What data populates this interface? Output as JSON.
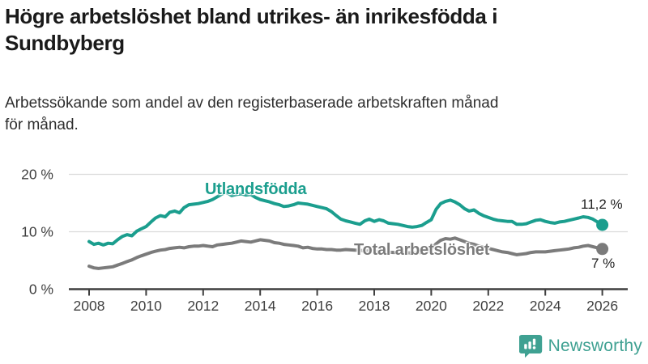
{
  "header": {
    "title_lines": [
      "Högre arbetslöshet bland utrikes- än inrikesfödda i",
      "Sundbyberg"
    ],
    "subtitle_lines": [
      "Arbetssökande som andel av den registerbaserade arbetskraften månad",
      "för månad."
    ]
  },
  "chart_data": {
    "type": "line",
    "title": "Högre arbetslöshet bland utrikes- än inrikesfödda i Sundbyberg",
    "subtitle": "Arbetssökande som andel av den registerbaserade arbetskraften månad för månad.",
    "unit": "%",
    "xlim": [
      2008,
      2026.3
    ],
    "ylim": [
      0,
      20
    ],
    "grid": "horizontal",
    "x_ticks": [
      2008,
      2010,
      2012,
      2014,
      2016,
      2018,
      2020,
      2022,
      2024,
      2026
    ],
    "y_ticks": [
      {
        "value": 20,
        "label": "20 %"
      },
      {
        "value": 10,
        "label": "10 %"
      },
      {
        "value": 0,
        "label": "0 %"
      }
    ],
    "colors": {
      "utlandsfodda": "#1b9e8e",
      "total": "#7b7b7b",
      "grid": "#dadada",
      "axis": "#3f3f3f",
      "tick_text": "#3f3f3f"
    },
    "series": [
      {
        "name": "Utlandsfödda",
        "color": "#1b9e8e",
        "end_label": "11,2 %",
        "end_value": 11.2,
        "points": [
          [
            2008.0,
            8.3
          ],
          [
            2008.17,
            7.8
          ],
          [
            2008.33,
            8.0
          ],
          [
            2008.5,
            7.7
          ],
          [
            2008.67,
            8.0
          ],
          [
            2008.83,
            7.9
          ],
          [
            2009.0,
            8.6
          ],
          [
            2009.17,
            9.2
          ],
          [
            2009.33,
            9.5
          ],
          [
            2009.5,
            9.3
          ],
          [
            2009.67,
            10.1
          ],
          [
            2009.83,
            10.5
          ],
          [
            2010.0,
            10.9
          ],
          [
            2010.17,
            11.7
          ],
          [
            2010.33,
            12.4
          ],
          [
            2010.5,
            12.8
          ],
          [
            2010.67,
            12.6
          ],
          [
            2010.83,
            13.4
          ],
          [
            2011.0,
            13.6
          ],
          [
            2011.17,
            13.3
          ],
          [
            2011.33,
            14.2
          ],
          [
            2011.5,
            14.7
          ],
          [
            2011.67,
            14.8
          ],
          [
            2011.83,
            14.9
          ],
          [
            2012.0,
            15.1
          ],
          [
            2012.17,
            15.3
          ],
          [
            2012.33,
            15.6
          ],
          [
            2012.5,
            16.1
          ],
          [
            2012.67,
            16.6
          ],
          [
            2012.83,
            16.8
          ],
          [
            2013.0,
            16.3
          ],
          [
            2013.17,
            16.5
          ],
          [
            2013.33,
            16.6
          ],
          [
            2013.5,
            16.4
          ],
          [
            2013.67,
            16.5
          ],
          [
            2013.83,
            16.0
          ],
          [
            2014.0,
            15.6
          ],
          [
            2014.17,
            15.4
          ],
          [
            2014.33,
            15.2
          ],
          [
            2014.5,
            14.9
          ],
          [
            2014.67,
            14.7
          ],
          [
            2014.83,
            14.4
          ],
          [
            2015.0,
            14.5
          ],
          [
            2015.17,
            14.7
          ],
          [
            2015.33,
            15.0
          ],
          [
            2015.5,
            14.9
          ],
          [
            2015.67,
            14.8
          ],
          [
            2015.83,
            14.6
          ],
          [
            2016.0,
            14.4
          ],
          [
            2016.17,
            14.2
          ],
          [
            2016.33,
            14.0
          ],
          [
            2016.5,
            13.5
          ],
          [
            2016.67,
            12.8
          ],
          [
            2016.83,
            12.2
          ],
          [
            2017.0,
            11.9
          ],
          [
            2017.17,
            11.7
          ],
          [
            2017.33,
            11.5
          ],
          [
            2017.5,
            11.3
          ],
          [
            2017.67,
            11.9
          ],
          [
            2017.83,
            12.2
          ],
          [
            2018.0,
            11.8
          ],
          [
            2018.17,
            12.1
          ],
          [
            2018.33,
            11.9
          ],
          [
            2018.5,
            11.5
          ],
          [
            2018.67,
            11.4
          ],
          [
            2018.83,
            11.3
          ],
          [
            2019.0,
            11.1
          ],
          [
            2019.17,
            10.9
          ],
          [
            2019.33,
            10.8
          ],
          [
            2019.5,
            10.9
          ],
          [
            2019.67,
            11.1
          ],
          [
            2019.83,
            11.6
          ],
          [
            2020.0,
            12.1
          ],
          [
            2020.17,
            13.9
          ],
          [
            2020.33,
            14.9
          ],
          [
            2020.5,
            15.3
          ],
          [
            2020.67,
            15.5
          ],
          [
            2020.83,
            15.2
          ],
          [
            2021.0,
            14.7
          ],
          [
            2021.17,
            14.0
          ],
          [
            2021.33,
            13.6
          ],
          [
            2021.5,
            13.8
          ],
          [
            2021.67,
            13.2
          ],
          [
            2021.83,
            12.8
          ],
          [
            2022.0,
            12.5
          ],
          [
            2022.17,
            12.2
          ],
          [
            2022.33,
            12.0
          ],
          [
            2022.5,
            11.9
          ],
          [
            2022.67,
            11.8
          ],
          [
            2022.83,
            11.8
          ],
          [
            2023.0,
            11.3
          ],
          [
            2023.17,
            11.3
          ],
          [
            2023.33,
            11.4
          ],
          [
            2023.5,
            11.7
          ],
          [
            2023.67,
            12.0
          ],
          [
            2023.83,
            12.1
          ],
          [
            2024.0,
            11.8
          ],
          [
            2024.17,
            11.6
          ],
          [
            2024.33,
            11.5
          ],
          [
            2024.5,
            11.7
          ],
          [
            2024.67,
            11.8
          ],
          [
            2024.83,
            12.0
          ],
          [
            2025.0,
            12.2
          ],
          [
            2025.17,
            12.4
          ],
          [
            2025.33,
            12.6
          ],
          [
            2025.5,
            12.5
          ],
          [
            2025.67,
            12.2
          ],
          [
            2025.83,
            11.7
          ],
          [
            2026.0,
            11.2
          ]
        ]
      },
      {
        "name": "Total arbetslöshet",
        "color": "#7b7b7b",
        "end_label": "7 %",
        "end_value": 7,
        "points": [
          [
            2008.0,
            4.0
          ],
          [
            2008.17,
            3.7
          ],
          [
            2008.33,
            3.6
          ],
          [
            2008.5,
            3.7
          ],
          [
            2008.67,
            3.8
          ],
          [
            2008.83,
            3.9
          ],
          [
            2009.0,
            4.2
          ],
          [
            2009.17,
            4.5
          ],
          [
            2009.33,
            4.8
          ],
          [
            2009.5,
            5.1
          ],
          [
            2009.67,
            5.5
          ],
          [
            2009.83,
            5.8
          ],
          [
            2010.0,
            6.1
          ],
          [
            2010.17,
            6.4
          ],
          [
            2010.33,
            6.6
          ],
          [
            2010.5,
            6.8
          ],
          [
            2010.67,
            6.9
          ],
          [
            2010.83,
            7.1
          ],
          [
            2011.0,
            7.2
          ],
          [
            2011.17,
            7.3
          ],
          [
            2011.33,
            7.2
          ],
          [
            2011.5,
            7.4
          ],
          [
            2011.67,
            7.5
          ],
          [
            2011.83,
            7.5
          ],
          [
            2012.0,
            7.6
          ],
          [
            2012.17,
            7.5
          ],
          [
            2012.33,
            7.4
          ],
          [
            2012.5,
            7.7
          ],
          [
            2012.67,
            7.8
          ],
          [
            2012.83,
            7.9
          ],
          [
            2013.0,
            8.0
          ],
          [
            2013.17,
            8.2
          ],
          [
            2013.33,
            8.4
          ],
          [
            2013.5,
            8.3
          ],
          [
            2013.67,
            8.2
          ],
          [
            2013.83,
            8.4
          ],
          [
            2014.0,
            8.6
          ],
          [
            2014.17,
            8.5
          ],
          [
            2014.33,
            8.4
          ],
          [
            2014.5,
            8.1
          ],
          [
            2014.67,
            8.0
          ],
          [
            2014.83,
            7.8
          ],
          [
            2015.0,
            7.7
          ],
          [
            2015.17,
            7.6
          ],
          [
            2015.33,
            7.5
          ],
          [
            2015.5,
            7.2
          ],
          [
            2015.67,
            7.3
          ],
          [
            2015.83,
            7.1
          ],
          [
            2016.0,
            7.0
          ],
          [
            2016.17,
            7.0
          ],
          [
            2016.33,
            6.9
          ],
          [
            2016.5,
            6.9
          ],
          [
            2016.67,
            6.8
          ],
          [
            2016.83,
            6.8
          ],
          [
            2017.0,
            6.9
          ],
          [
            2017.33,
            6.8
          ],
          [
            2017.67,
            6.7
          ],
          [
            2018.0,
            6.6
          ],
          [
            2018.33,
            6.5
          ],
          [
            2018.67,
            6.4
          ],
          [
            2019.0,
            6.4
          ],
          [
            2019.33,
            6.3
          ],
          [
            2019.67,
            6.4
          ],
          [
            2019.83,
            6.6
          ],
          [
            2020.0,
            7.0
          ],
          [
            2020.17,
            7.9
          ],
          [
            2020.33,
            8.5
          ],
          [
            2020.5,
            8.8
          ],
          [
            2020.67,
            8.7
          ],
          [
            2020.83,
            8.9
          ],
          [
            2021.0,
            8.6
          ],
          [
            2021.17,
            8.3
          ],
          [
            2021.33,
            8.0
          ],
          [
            2021.5,
            7.8
          ],
          [
            2021.67,
            7.5
          ],
          [
            2021.83,
            7.3
          ],
          [
            2022.0,
            7.1
          ],
          [
            2022.17,
            6.9
          ],
          [
            2022.33,
            6.7
          ],
          [
            2022.5,
            6.5
          ],
          [
            2022.67,
            6.4
          ],
          [
            2022.83,
            6.2
          ],
          [
            2023.0,
            6.0
          ],
          [
            2023.17,
            6.1
          ],
          [
            2023.33,
            6.2
          ],
          [
            2023.5,
            6.4
          ],
          [
            2023.67,
            6.5
          ],
          [
            2023.83,
            6.5
          ],
          [
            2024.0,
            6.5
          ],
          [
            2024.17,
            6.6
          ],
          [
            2024.33,
            6.7
          ],
          [
            2024.5,
            6.8
          ],
          [
            2024.67,
            6.9
          ],
          [
            2024.83,
            7.0
          ],
          [
            2025.0,
            7.2
          ],
          [
            2025.17,
            7.3
          ],
          [
            2025.33,
            7.5
          ],
          [
            2025.5,
            7.6
          ],
          [
            2025.67,
            7.4
          ],
          [
            2025.83,
            7.2
          ],
          [
            2026.0,
            7.0
          ]
        ]
      }
    ],
    "legend_position": "inline-labels"
  },
  "footer": {
    "brand": "Newsworthy",
    "brand_color": "#3fa192"
  }
}
